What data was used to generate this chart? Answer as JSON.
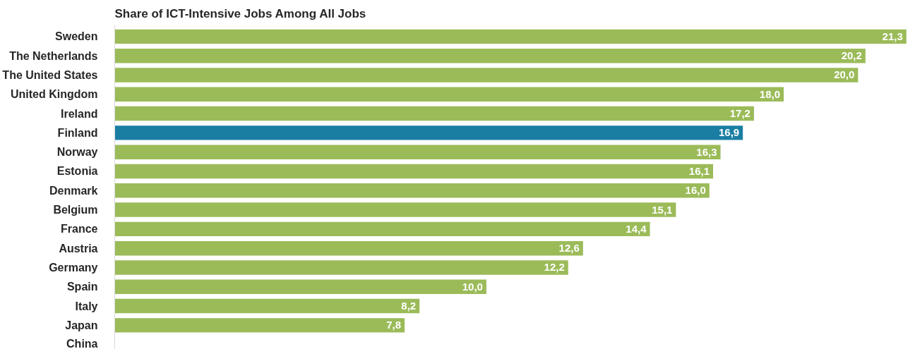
{
  "chart_data": {
    "type": "bar",
    "orientation": "horizontal",
    "title": "Share of ICT-Intensive Jobs Among All Jobs",
    "categories": [
      "Sweden",
      "The Netherlands",
      "The United States",
      "United Kingdom",
      "Ireland",
      "Finland",
      "Norway",
      "Estonia",
      "Denmark",
      "Belgium",
      "France",
      "Austria",
      "Germany",
      "Spain",
      "Italy",
      "Japan",
      "China"
    ],
    "values": [
      21.3,
      20.2,
      20.0,
      18.0,
      17.2,
      16.9,
      16.3,
      16.1,
      16.0,
      15.1,
      14.4,
      12.6,
      12.2,
      10.0,
      8.2,
      7.8,
      null
    ],
    "value_labels": [
      "21,3",
      "20,2",
      "20,0",
      "18,0",
      "17,2",
      "16,9",
      "16,3",
      "16,1",
      "16,0",
      "15,1",
      "14,4",
      "12,6",
      "12,2",
      "10,0",
      "8,2",
      "7,8",
      null
    ],
    "colors": [
      "#9bbb59",
      "#9bbb59",
      "#9bbb59",
      "#9bbb59",
      "#9bbb59",
      "#1a7ea3",
      "#9bbb59",
      "#9bbb59",
      "#9bbb59",
      "#9bbb59",
      "#9bbb59",
      "#9bbb59",
      "#9bbb59",
      "#9bbb59",
      "#9bbb59",
      "#9bbb59",
      "#9bbb59"
    ],
    "grid": false
  }
}
